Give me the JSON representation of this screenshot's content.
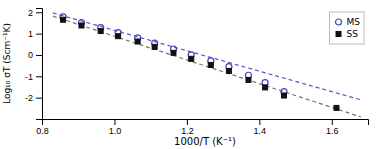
{
  "chart_data": {
    "type": "scatter",
    "xlabel": "1000/T (K⁻¹)",
    "ylabel": "Log₁₀ σT (Scm⁻¹K)",
    "xlim": [
      0.8,
      1.7
    ],
    "ylim": [
      -3.0,
      2.2
    ],
    "xticks": [
      0.8,
      {
        "value": 1.0,
        "label": "1.0"
      },
      1.2,
      1.4,
      1.6
    ],
    "yticks": [
      -2,
      -1,
      0,
      1,
      2
    ],
    "grid": false,
    "legend": "upper-right",
    "series": [
      {
        "name": "MS",
        "type": "scatter",
        "marker": "open-circle",
        "color": "#4444bb",
        "x": [
          0.858,
          0.909,
          0.962,
          1.01,
          1.064,
          1.111,
          1.163,
          1.212,
          1.266,
          1.316,
          1.37,
          1.416,
          1.468
        ],
        "values": [
          1.78,
          1.52,
          1.28,
          1.05,
          0.8,
          0.55,
          0.28,
          0.0,
          -0.28,
          -0.55,
          -0.95,
          -1.3,
          -1.72
        ]
      },
      {
        "name": "SS",
        "type": "scatter",
        "marker": "square",
        "color": "#111111",
        "x": [
          0.858,
          0.909,
          0.962,
          1.01,
          1.064,
          1.111,
          1.163,
          1.212,
          1.266,
          1.316,
          1.37,
          1.416,
          1.468,
          1.613
        ],
        "values": [
          1.65,
          1.38,
          1.12,
          0.88,
          0.63,
          0.38,
          0.1,
          -0.18,
          -0.47,
          -0.75,
          -1.17,
          -1.52,
          -1.9,
          -2.48
        ]
      },
      {
        "type": "line",
        "line_style": "dashed",
        "color": "#5555cc",
        "x": [
          0.83,
          1.68
        ],
        "values": [
          1.97,
          -2.1
        ]
      },
      {
        "type": "line",
        "line_style": "dashed",
        "color": "#777777",
        "x": [
          0.83,
          1.68
        ],
        "values": [
          1.82,
          -2.9
        ]
      }
    ]
  }
}
